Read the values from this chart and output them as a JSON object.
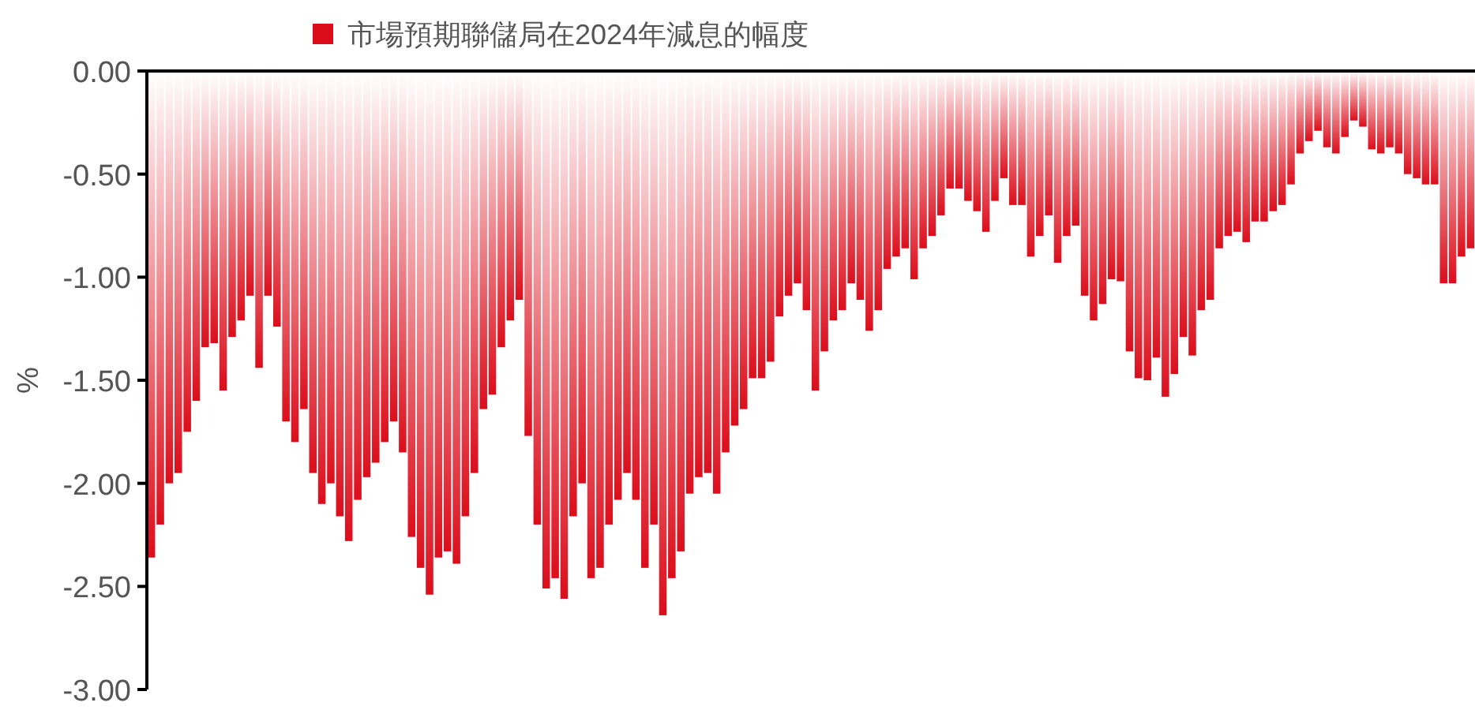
{
  "chart_data": {
    "type": "bar",
    "ylabel": "%",
    "categories": [
      null,
      null,
      null,
      null,
      null,
      null,
      null,
      null,
      null,
      null,
      null,
      null,
      null,
      null,
      null,
      null,
      null,
      null,
      null,
      null,
      null,
      null,
      null,
      null,
      null,
      null,
      null,
      null,
      null,
      null,
      null,
      null,
      null,
      null,
      null,
      null,
      null,
      null,
      null,
      null,
      null,
      null,
      null,
      null,
      null,
      null,
      null,
      null,
      null,
      null,
      null,
      null,
      null,
      null,
      null,
      null,
      null,
      null,
      null,
      null,
      null,
      null,
      null,
      null,
      null,
      null,
      null,
      null,
      null,
      null,
      null,
      null,
      null,
      null,
      null,
      null,
      null,
      null,
      null,
      null,
      null,
      null,
      null,
      null,
      null,
      null,
      null,
      null,
      null,
      null,
      null,
      null,
      null,
      null,
      null,
      null,
      null,
      null,
      null,
      null,
      null,
      null,
      null,
      null,
      null,
      null,
      null,
      null,
      null,
      null,
      null,
      null,
      null,
      null,
      null,
      null,
      null,
      null,
      null,
      null,
      null,
      null,
      null,
      null,
      null,
      null,
      null,
      null,
      null,
      null,
      null,
      null,
      null,
      null,
      null,
      null,
      null,
      null,
      null,
      null,
      null,
      null,
      null,
      null,
      null,
      null,
      null,
      null
    ],
    "series": [
      {
        "name": "市場預期聯儲局在2024年減息的幅度",
        "color": "#dc0d1b",
        "values": [
          -2.36,
          -2.2,
          -2.0,
          -1.95,
          -1.75,
          -1.6,
          -1.34,
          -1.32,
          -1.55,
          -1.29,
          -1.21,
          -1.09,
          -1.44,
          -1.09,
          -1.24,
          -1.7,
          -1.8,
          -1.64,
          -1.95,
          -2.1,
          -2.0,
          -2.16,
          -2.28,
          -2.08,
          -1.97,
          -1.9,
          -1.8,
          -1.7,
          -1.85,
          -2.26,
          -2.41,
          -2.54,
          -2.36,
          -2.33,
          -2.39,
          -2.16,
          -1.95,
          -1.64,
          -1.57,
          -1.34,
          -1.21,
          -1.11,
          -1.77,
          -2.2,
          -2.51,
          -2.46,
          -2.56,
          -2.16,
          -2.0,
          -2.46,
          -2.41,
          -2.2,
          -2.08,
          -1.95,
          -2.08,
          -2.41,
          -2.2,
          -2.64,
          -2.46,
          -2.33,
          -2.05,
          -1.97,
          -1.95,
          -2.05,
          -1.85,
          -1.72,
          -1.64,
          -1.49,
          -1.49,
          -1.41,
          -1.19,
          -1.09,
          -1.03,
          -1.16,
          -1.55,
          -1.36,
          -1.21,
          -1.16,
          -1.03,
          -1.11,
          -1.26,
          -1.16,
          -0.96,
          -0.9,
          -0.86,
          -1.01,
          -0.86,
          -0.8,
          -0.7,
          -0.57,
          -0.57,
          -0.63,
          -0.68,
          -0.78,
          -0.63,
          -0.52,
          -0.65,
          -0.65,
          -0.9,
          -0.8,
          -0.7,
          -0.93,
          -0.8,
          -0.75,
          -1.09,
          -1.21,
          -1.13,
          -1.01,
          -1.02,
          -1.36,
          -1.49,
          -1.5,
          -1.39,
          -1.58,
          -1.47,
          -1.29,
          -1.38,
          -1.16,
          -1.11,
          -0.86,
          -0.8,
          -0.78,
          -0.83,
          -0.73,
          -0.73,
          -0.68,
          -0.65,
          -0.55,
          -0.4,
          -0.34,
          -0.29,
          -0.37,
          -0.4,
          -0.32,
          -0.24,
          -0.27,
          -0.38,
          -0.4,
          -0.37,
          -0.4,
          -0.5,
          -0.52,
          -0.55,
          -0.55,
          -1.03,
          -1.03,
          -0.9,
          -0.86
        ]
      }
    ],
    "ylim": [
      -3,
      0
    ],
    "yticks": [
      {
        "value": 0,
        "label": "0.00"
      },
      {
        "value": -0.5,
        "label": "-0.50"
      },
      {
        "value": -1,
        "label": "-1.00"
      },
      {
        "value": -1.5,
        "label": "-1.50"
      },
      {
        "value": -2,
        "label": "-2.00"
      },
      {
        "value": -2.5,
        "label": "-2.50"
      },
      {
        "value": -3,
        "label": "-3.00"
      }
    ],
    "grid": false,
    "legend": "top"
  }
}
